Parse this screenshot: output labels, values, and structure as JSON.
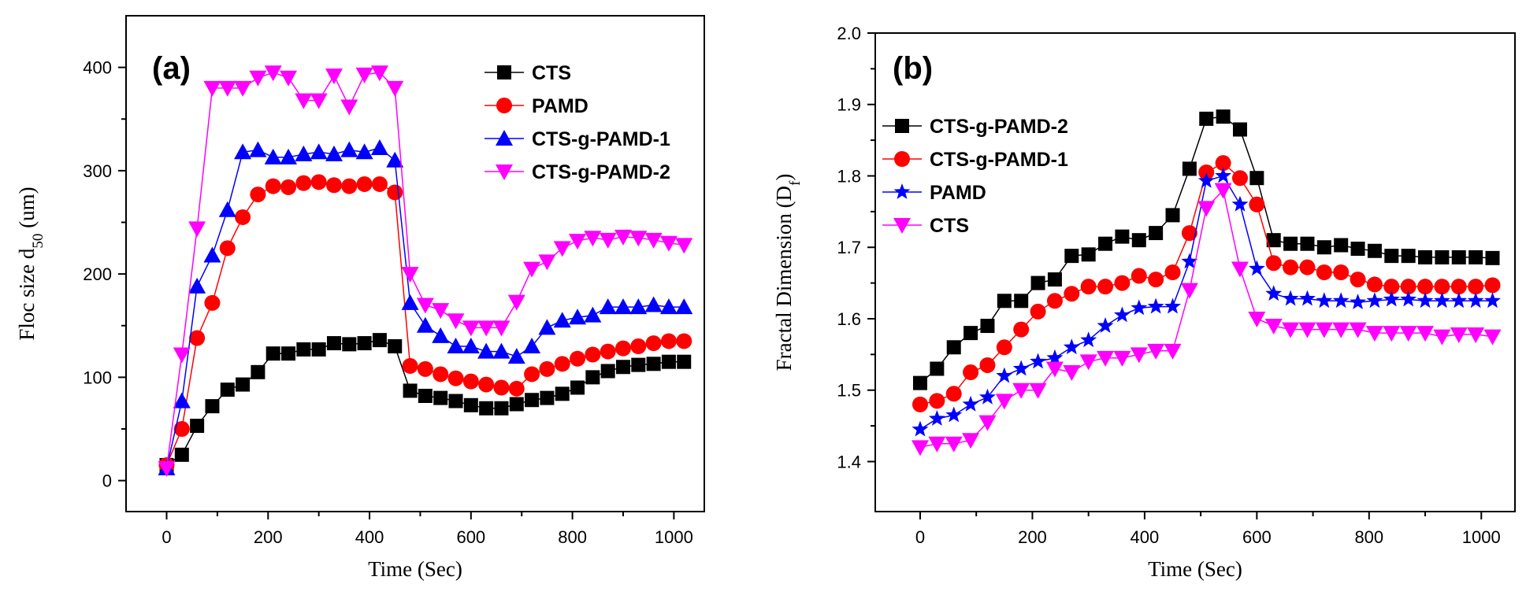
{
  "chart_data": [
    {
      "type": "line",
      "panel_label": "(a)",
      "xlabel": "Time (Sec)",
      "ylabel": {
        "main": "Floc size d",
        "sub": "50",
        "unit": " (um)"
      },
      "xlim": [
        -80,
        1060
      ],
      "ylim": [
        -30,
        450
      ],
      "xticks": [
        0,
        200,
        400,
        600,
        800,
        1000
      ],
      "yticks": [
        0,
        100,
        200,
        300,
        400
      ],
      "legend_position": "top-right",
      "x": [
        0,
        30,
        60,
        90,
        120,
        150,
        180,
        210,
        240,
        270,
        300,
        330,
        360,
        390,
        420,
        450,
        480,
        510,
        540,
        570,
        600,
        630,
        660,
        690,
        720,
        750,
        780,
        810,
        840,
        870,
        900,
        930,
        960,
        990,
        1020
      ],
      "series": [
        {
          "name": "CTS",
          "color": "#000000",
          "marker": "square",
          "values": [
            15,
            25,
            53,
            72,
            88,
            93,
            105,
            123,
            123,
            127,
            127,
            133,
            132,
            133,
            136,
            130,
            87,
            82,
            80,
            77,
            73,
            70,
            70,
            74,
            78,
            80,
            84,
            90,
            100,
            106,
            110,
            112,
            113,
            115,
            115
          ]
        },
        {
          "name": "PAMD",
          "color": "#ff0000",
          "marker": "circle",
          "values": [
            15,
            50,
            138,
            172,
            225,
            255,
            277,
            285,
            284,
            288,
            289,
            286,
            285,
            287,
            287,
            279,
            111,
            108,
            103,
            99,
            96,
            93,
            90,
            89,
            103,
            108,
            113,
            118,
            122,
            125,
            128,
            130,
            133,
            135,
            135
          ]
        },
        {
          "name": "CTS-g-PAMD-1",
          "color": "#0000ff",
          "marker": "triangle-up",
          "values": [
            12,
            77,
            188,
            218,
            262,
            318,
            320,
            313,
            313,
            316,
            318,
            316,
            320,
            318,
            322,
            310,
            172,
            150,
            140,
            130,
            130,
            125,
            125,
            120,
            130,
            148,
            155,
            158,
            160,
            168,
            168,
            168,
            170,
            168,
            168
          ]
        },
        {
          "name": "CTS-g-PAMD-2",
          "color": "#ff00ff",
          "marker": "triangle-down",
          "values": [
            12,
            122,
            244,
            380,
            380,
            380,
            390,
            395,
            390,
            368,
            368,
            392,
            362,
            393,
            395,
            380,
            200,
            170,
            165,
            155,
            148,
            148,
            148,
            173,
            205,
            212,
            225,
            232,
            235,
            233,
            236,
            235,
            233,
            230,
            228
          ]
        }
      ]
    },
    {
      "type": "line",
      "panel_label": "(b)",
      "xlabel": "Time (Sec)",
      "ylabel": {
        "main": "Fractal Dimension (D",
        "sub": "f",
        "unit": ")"
      },
      "xlim": [
        -80,
        1060
      ],
      "ylim": [
        1.33,
        2.0
      ],
      "xticks": [
        0,
        200,
        400,
        600,
        800,
        1000
      ],
      "yticks": [
        1.4,
        1.5,
        1.6,
        1.7,
        1.8,
        1.9,
        2.0
      ],
      "ytick_labels": [
        "1.4",
        "1.5",
        "1.6",
        "1.7",
        "1.8",
        "1.9",
        "2.0"
      ],
      "legend_position": "top-left",
      "x": [
        0,
        30,
        60,
        90,
        120,
        150,
        180,
        210,
        240,
        270,
        300,
        330,
        360,
        390,
        420,
        450,
        480,
        510,
        540,
        570,
        600,
        630,
        660,
        690,
        720,
        750,
        780,
        810,
        840,
        870,
        900,
        930,
        960,
        990,
        1020
      ],
      "series": [
        {
          "name": "CTS-g-PAMD-2",
          "color": "#000000",
          "marker": "square",
          "values": [
            1.51,
            1.53,
            1.56,
            1.58,
            1.59,
            1.625,
            1.625,
            1.65,
            1.655,
            1.688,
            1.69,
            1.705,
            1.715,
            1.71,
            1.72,
            1.745,
            1.81,
            1.88,
            1.883,
            1.865,
            1.797,
            1.71,
            1.705,
            1.705,
            1.7,
            1.703,
            1.698,
            1.695,
            1.688,
            1.688,
            1.686,
            1.686,
            1.686,
            1.686,
            1.685
          ]
        },
        {
          "name": "CTS-g-PAMD-1",
          "color": "#ff0000",
          "marker": "circle",
          "values": [
            1.48,
            1.485,
            1.495,
            1.525,
            1.535,
            1.56,
            1.585,
            1.61,
            1.625,
            1.635,
            1.645,
            1.645,
            1.65,
            1.66,
            1.655,
            1.665,
            1.72,
            1.805,
            1.818,
            1.797,
            1.76,
            1.678,
            1.672,
            1.672,
            1.665,
            1.665,
            1.655,
            1.648,
            1.645,
            1.645,
            1.645,
            1.645,
            1.645,
            1.645,
            1.647
          ]
        },
        {
          "name": "PAMD",
          "color": "#0000ff",
          "marker": "star",
          "values": [
            1.445,
            1.46,
            1.465,
            1.48,
            1.49,
            1.52,
            1.53,
            1.54,
            1.545,
            1.56,
            1.57,
            1.59,
            1.605,
            1.615,
            1.617,
            1.617,
            1.68,
            1.793,
            1.8,
            1.76,
            1.67,
            1.635,
            1.628,
            1.628,
            1.625,
            1.625,
            1.623,
            1.625,
            1.627,
            1.627,
            1.625,
            1.625,
            1.625,
            1.625,
            1.625
          ]
        },
        {
          "name": "CTS",
          "color": "#ff00ff",
          "marker": "triangle-down",
          "values": [
            1.42,
            1.425,
            1.425,
            1.43,
            1.455,
            1.485,
            1.5,
            1.5,
            1.53,
            1.525,
            1.54,
            1.545,
            1.545,
            1.55,
            1.555,
            1.555,
            1.64,
            1.755,
            1.78,
            1.67,
            1.6,
            1.59,
            1.585,
            1.585,
            1.585,
            1.585,
            1.585,
            1.58,
            1.58,
            1.58,
            1.58,
            1.575,
            1.578,
            1.578,
            1.575
          ]
        }
      ]
    }
  ]
}
